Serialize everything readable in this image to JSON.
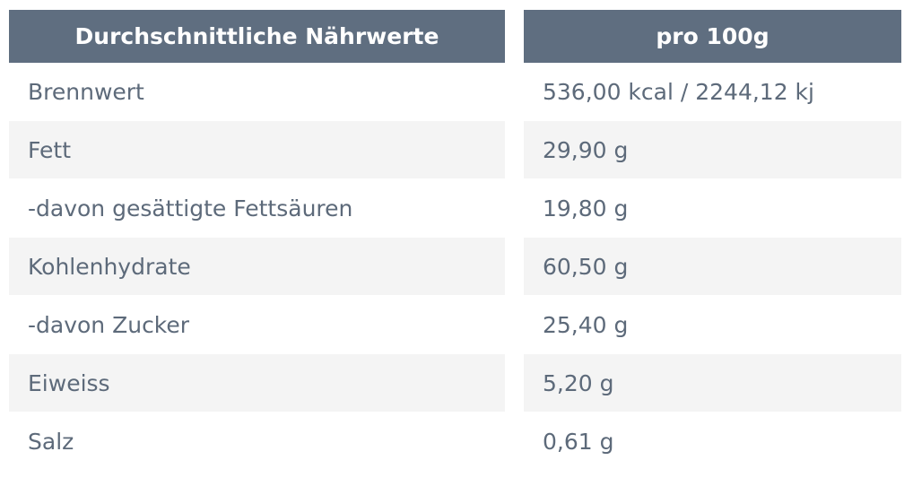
{
  "table": {
    "headers": {
      "name": "Durchschnittliche Nährwerte",
      "value": "pro 100g"
    },
    "rows": [
      {
        "name": "Brennwert",
        "value": "536,00 kcal / 2244,12 kj"
      },
      {
        "name": "Fett",
        "value": "29,90 g"
      },
      {
        "name": "-davon gesättigte Fettsäuren",
        "value": "19,80 g"
      },
      {
        "name": "Kohlenhydrate",
        "value": "60,50 g"
      },
      {
        "name": "-davon Zucker",
        "value": "25,40 g"
      },
      {
        "name": "Eiweiss",
        "value": "5,20 g"
      },
      {
        "name": "Salz",
        "value": "0,61 g"
      }
    ]
  },
  "colors": {
    "header_background": "#5f6e80",
    "header_text": "#ffffff",
    "row_shaded_background": "#f4f4f4",
    "body_text": "#5d6a7a"
  }
}
